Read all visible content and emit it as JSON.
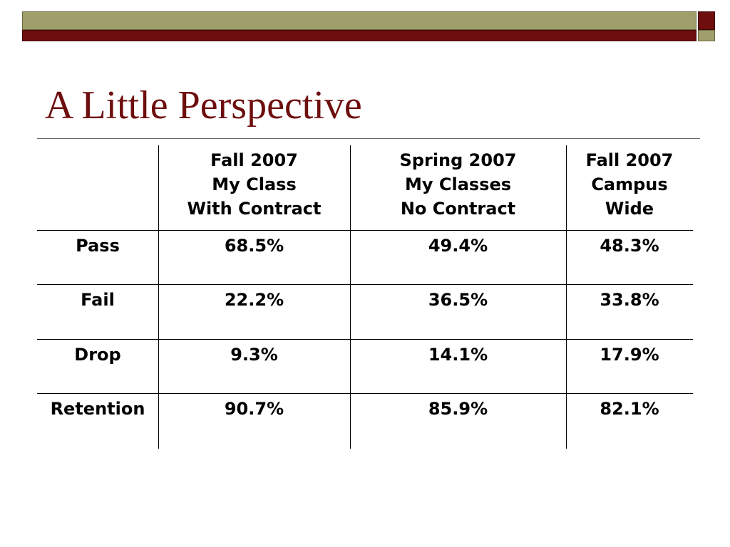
{
  "slide": {
    "title": "A Little Perspective"
  },
  "table": {
    "headers": [
      "",
      [
        "Fall 2007",
        "My Class",
        "With Contract"
      ],
      [
        "Spring 2007",
        "My Classes",
        "No Contract"
      ],
      [
        "Fall 2007",
        "Campus",
        "Wide"
      ]
    ],
    "rows": [
      {
        "label": "Pass",
        "values": [
          "68.5%",
          "49.4%",
          "48.3%"
        ]
      },
      {
        "label": "Fail",
        "values": [
          "22.2%",
          "36.5%",
          "33.8%"
        ]
      },
      {
        "label": "Drop",
        "values": [
          "9.3%",
          "14.1%",
          "17.9%"
        ]
      },
      {
        "label": "Retention",
        "values": [
          "90.7%",
          "85.9%",
          "82.1%"
        ]
      }
    ]
  },
  "colors": {
    "title": "#6e0e0e",
    "olive_bar": "#a09e6a",
    "maroon_bar": "#6e0e0e"
  }
}
